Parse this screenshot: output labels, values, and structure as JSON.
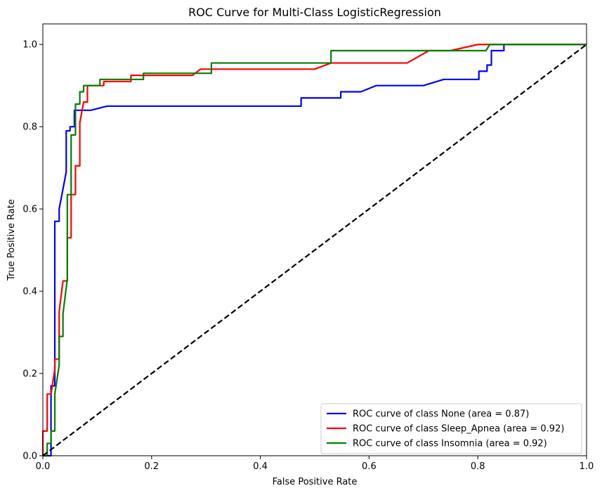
{
  "chart_data": {
    "type": "line",
    "title": "ROC Curve for Multi-Class LogisticRegression",
    "xlabel": "False Positive Rate",
    "ylabel": "True Positive Rate",
    "xlim": [
      0.0,
      1.0
    ],
    "ylim": [
      0.0,
      1.05
    ],
    "xticks": [
      "0.0",
      "0.2",
      "0.4",
      "0.6",
      "0.8",
      "1.0"
    ],
    "yticks": [
      "0.0",
      "0.2",
      "0.4",
      "0.6",
      "0.8",
      "1.0"
    ],
    "grid": false,
    "legend_position": "lower-right",
    "series": [
      {
        "name": "ROC curve of class None (area = 0.87)",
        "color": "#0000ff",
        "points": [
          [
            0,
            0
          ],
          [
            0.015,
            0
          ],
          [
            0.015,
            0.17
          ],
          [
            0.022,
            0.17
          ],
          [
            0.022,
            0.57
          ],
          [
            0.03,
            0.57
          ],
          [
            0.03,
            0.6
          ],
          [
            0.043,
            0.69
          ],
          [
            0.043,
            0.79
          ],
          [
            0.05,
            0.79
          ],
          [
            0.05,
            0.8
          ],
          [
            0.058,
            0.8
          ],
          [
            0.058,
            0.84
          ],
          [
            0.088,
            0.84
          ],
          [
            0.118,
            0.85
          ],
          [
            0.475,
            0.85
          ],
          [
            0.475,
            0.87
          ],
          [
            0.548,
            0.87
          ],
          [
            0.548,
            0.885
          ],
          [
            0.585,
            0.885
          ],
          [
            0.613,
            0.9
          ],
          [
            0.7,
            0.9
          ],
          [
            0.737,
            0.915
          ],
          [
            0.802,
            0.915
          ],
          [
            0.802,
            0.935
          ],
          [
            0.817,
            0.935
          ],
          [
            0.817,
            0.95
          ],
          [
            0.825,
            0.95
          ],
          [
            0.825,
            0.985
          ],
          [
            0.848,
            0.985
          ],
          [
            0.848,
            1.0
          ],
          [
            1.0,
            1.0
          ]
        ]
      },
      {
        "name": "ROC curve of class Sleep_Apnea (area = 0.92)",
        "color": "#ff0000",
        "points": [
          [
            0,
            0
          ],
          [
            0,
            0.06
          ],
          [
            0.008,
            0.06
          ],
          [
            0.008,
            0.15
          ],
          [
            0.015,
            0.15
          ],
          [
            0.022,
            0.21
          ],
          [
            0.022,
            0.235
          ],
          [
            0.03,
            0.235
          ],
          [
            0.03,
            0.35
          ],
          [
            0.037,
            0.425
          ],
          [
            0.045,
            0.425
          ],
          [
            0.045,
            0.53
          ],
          [
            0.052,
            0.53
          ],
          [
            0.052,
            0.635
          ],
          [
            0.06,
            0.635
          ],
          [
            0.06,
            0.705
          ],
          [
            0.068,
            0.705
          ],
          [
            0.068,
            0.81
          ],
          [
            0.075,
            0.86
          ],
          [
            0.082,
            0.86
          ],
          [
            0.082,
            0.9
          ],
          [
            0.112,
            0.9
          ],
          [
            0.112,
            0.91
          ],
          [
            0.162,
            0.91
          ],
          [
            0.162,
            0.925
          ],
          [
            0.275,
            0.925
          ],
          [
            0.29,
            0.94
          ],
          [
            0.5,
            0.94
          ],
          [
            0.53,
            0.955
          ],
          [
            0.67,
            0.955
          ],
          [
            0.71,
            0.985
          ],
          [
            0.75,
            0.985
          ],
          [
            0.8,
            1.0
          ],
          [
            1.0,
            1.0
          ]
        ]
      },
      {
        "name": "ROC curve of class Insomnia (area = 0.92)",
        "color": "#008000",
        "points": [
          [
            0,
            0
          ],
          [
            0.008,
            0
          ],
          [
            0.008,
            0.03
          ],
          [
            0.015,
            0.03
          ],
          [
            0.015,
            0.06
          ],
          [
            0.022,
            0.06
          ],
          [
            0.022,
            0.15
          ],
          [
            0.03,
            0.22
          ],
          [
            0.03,
            0.29
          ],
          [
            0.037,
            0.29
          ],
          [
            0.037,
            0.345
          ],
          [
            0.045,
            0.43
          ],
          [
            0.045,
            0.635
          ],
          [
            0.052,
            0.635
          ],
          [
            0.052,
            0.78
          ],
          [
            0.06,
            0.78
          ],
          [
            0.06,
            0.855
          ],
          [
            0.068,
            0.855
          ],
          [
            0.068,
            0.885
          ],
          [
            0.075,
            0.885
          ],
          [
            0.075,
            0.9
          ],
          [
            0.105,
            0.9
          ],
          [
            0.105,
            0.915
          ],
          [
            0.185,
            0.915
          ],
          [
            0.185,
            0.93
          ],
          [
            0.31,
            0.93
          ],
          [
            0.31,
            0.955
          ],
          [
            0.53,
            0.955
          ],
          [
            0.53,
            0.985
          ],
          [
            0.815,
            0.985
          ],
          [
            0.822,
            1.0
          ],
          [
            1.0,
            1.0
          ]
        ]
      },
      {
        "name": "",
        "color": "#000000",
        "dashed": true,
        "points": [
          [
            0,
            0
          ],
          [
            1.0,
            1.0
          ]
        ]
      }
    ]
  }
}
